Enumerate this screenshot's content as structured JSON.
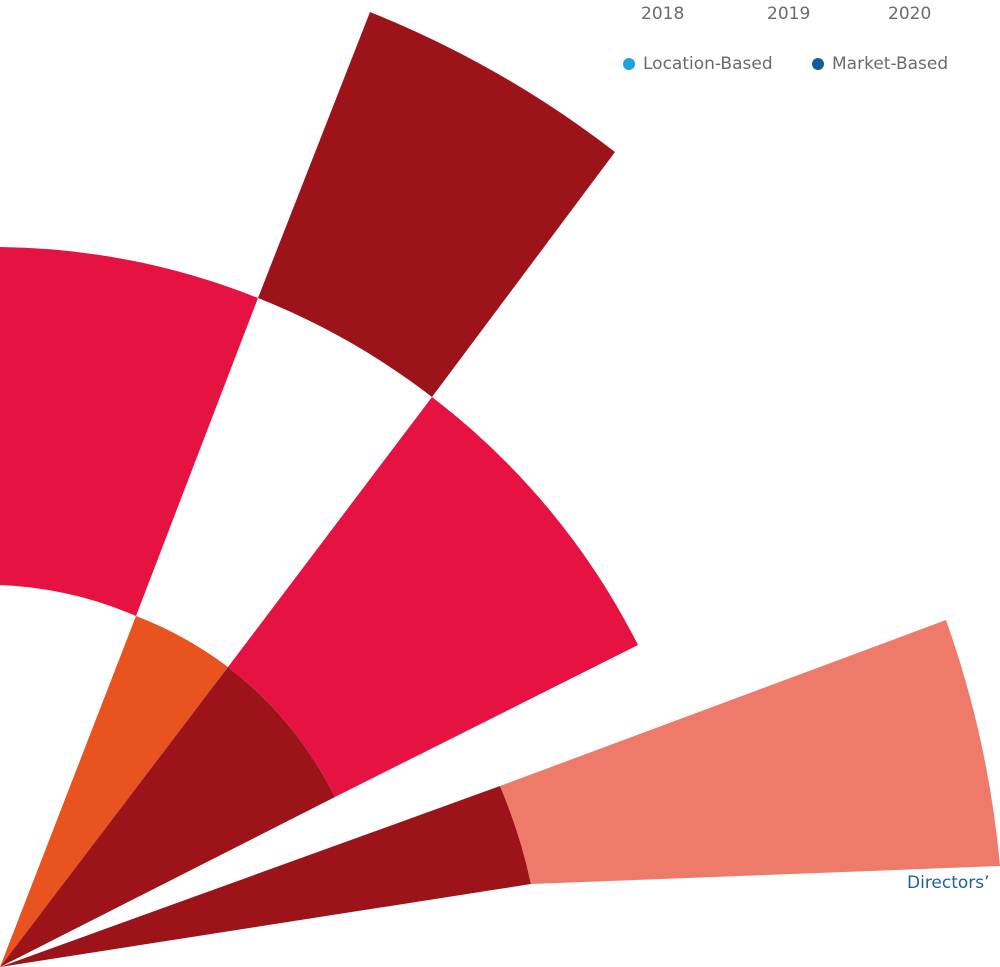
{
  "header": {
    "years": [
      "2018",
      "2019",
      "2020"
    ]
  },
  "legend": {
    "items": [
      {
        "label": "Location-Based",
        "color": "#1ba3dd"
      },
      {
        "label": "Market-Based",
        "color": "#0f5d9b"
      }
    ]
  },
  "chart_data": {
    "type": "polar-area",
    "labels": [
      "Directors’"
    ],
    "wedge_colors": [
      "#e8531f",
      "#9c141a",
      "#e51242",
      "#ee7b6a"
    ]
  }
}
